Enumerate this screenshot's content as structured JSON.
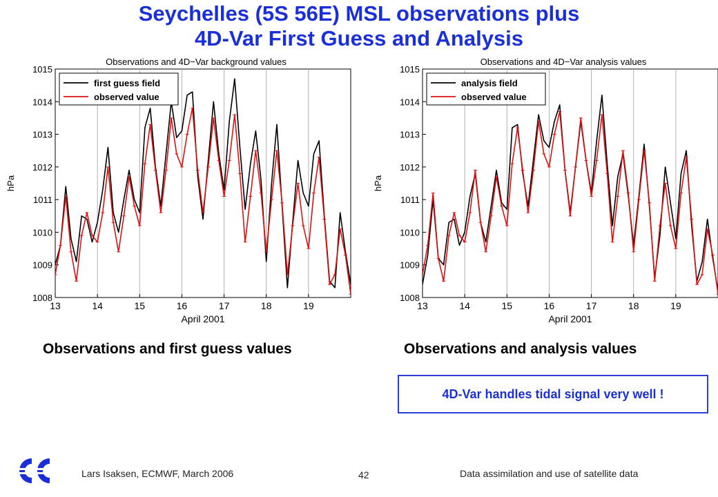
{
  "title": {
    "line1": "Seychelles (5S 56E) MSL observations plus",
    "line2": "4D-Var First Guess and Analysis"
  },
  "captions": {
    "left": "Observations and first guess values",
    "right": "Observations and analysis values"
  },
  "callout": "4D-Var handles tidal signal very well !",
  "footer": {
    "author": "Lars Isaksen, ECMWF, March 2006",
    "page": "42",
    "course": "Data assimilation and use of satellite data"
  },
  "colors": {
    "title": "#1a2fd6",
    "model_line": "#000000",
    "observed_line": "#e01010",
    "callout_border": "#2a3fd8"
  },
  "logo_icon": "ecmwf-logo-icon",
  "chart_data": [
    {
      "type": "line",
      "title": "Observations and 4D−Var background values",
      "xlabel": "April 2001",
      "ylabel": "hPa",
      "xlim": [
        13,
        20
      ],
      "ylim": [
        1008,
        1015
      ],
      "xticks": [
        13,
        14,
        15,
        16,
        17,
        18,
        19
      ],
      "yticks": [
        1008,
        1009,
        1010,
        1011,
        1012,
        1013,
        1014,
        1015
      ],
      "grid": "vertical",
      "legend_position": "top-left",
      "x": [
        13.0,
        13.125,
        13.25,
        13.375,
        13.5,
        13.625,
        13.75,
        13.875,
        14.0,
        14.125,
        14.25,
        14.375,
        14.5,
        14.625,
        14.75,
        14.875,
        15.0,
        15.125,
        15.25,
        15.375,
        15.5,
        15.625,
        15.75,
        15.875,
        16.0,
        16.125,
        16.25,
        16.375,
        16.5,
        16.625,
        16.75,
        16.875,
        17.0,
        17.125,
        17.25,
        17.375,
        17.5,
        17.625,
        17.75,
        17.875,
        18.0,
        18.125,
        18.25,
        18.375,
        18.5,
        18.625,
        18.75,
        18.875,
        19.0,
        19.125,
        19.25,
        19.375,
        19.5,
        19.625,
        19.75,
        19.875,
        20.0
      ],
      "series": [
        {
          "name": "first guess field",
          "color": "#000000",
          "values": [
            1009.0,
            1009.6,
            1011.4,
            1009.8,
            1009.1,
            1010.5,
            1010.4,
            1009.7,
            1010.3,
            1011.3,
            1012.6,
            1010.6,
            1010.0,
            1011.0,
            1011.9,
            1011.0,
            1010.6,
            1013.2,
            1013.8,
            1012.0,
            1010.8,
            1012.4,
            1014.0,
            1012.9,
            1013.1,
            1014.2,
            1014.3,
            1011.7,
            1010.4,
            1012.2,
            1014.0,
            1012.4,
            1011.3,
            1013.4,
            1014.7,
            1012.6,
            1010.7,
            1012.1,
            1013.1,
            1011.6,
            1009.1,
            1011.5,
            1013.3,
            1010.8,
            1008.3,
            1010.3,
            1012.2,
            1011.2,
            1010.8,
            1012.4,
            1012.8,
            1010.5,
            1008.5,
            1008.3,
            1010.6,
            1009.4,
            1008.4
          ]
        },
        {
          "name": "observed value",
          "color": "#e01010",
          "values": [
            1008.7,
            1009.6,
            1011.1,
            1009.4,
            1008.5,
            1009.9,
            1010.6,
            1009.9,
            1009.7,
            1010.6,
            1012.0,
            1010.3,
            1009.4,
            1010.5,
            1011.7,
            1010.8,
            1010.2,
            1012.1,
            1013.3,
            1011.9,
            1010.6,
            1011.9,
            1013.5,
            1012.4,
            1012.0,
            1013.0,
            1013.8,
            1011.9,
            1010.6,
            1012.0,
            1013.5,
            1012.2,
            1011.1,
            1012.2,
            1013.6,
            1011.8,
            1009.7,
            1011.1,
            1012.5,
            1011.2,
            1009.4,
            1011.0,
            1012.5,
            1010.9,
            1008.7,
            1010.2,
            1011.5,
            1010.2,
            1009.5,
            1011.2,
            1012.3,
            1010.4,
            1008.4,
            1008.7,
            1010.1,
            1009.3,
            1008.1
          ]
        }
      ]
    },
    {
      "type": "line",
      "title": "Observations and 4D−Var analysis values",
      "xlabel": "April 2001",
      "ylabel": "hPa",
      "xlim": [
        13,
        20
      ],
      "ylim": [
        1008,
        1015
      ],
      "xticks": [
        13,
        14,
        15,
        16,
        17,
        18,
        19
      ],
      "yticks": [
        1008,
        1009,
        1010,
        1011,
        1012,
        1013,
        1014,
        1015
      ],
      "grid": "vertical",
      "legend_position": "top-left",
      "x": [
        13.0,
        13.125,
        13.25,
        13.375,
        13.5,
        13.625,
        13.75,
        13.875,
        14.0,
        14.125,
        14.25,
        14.375,
        14.5,
        14.625,
        14.75,
        14.875,
        15.0,
        15.125,
        15.25,
        15.375,
        15.5,
        15.625,
        15.75,
        15.875,
        16.0,
        16.125,
        16.25,
        16.375,
        16.5,
        16.625,
        16.75,
        16.875,
        17.0,
        17.125,
        17.25,
        17.375,
        17.5,
        17.625,
        17.75,
        17.875,
        18.0,
        18.125,
        18.25,
        18.375,
        18.5,
        18.625,
        18.75,
        18.875,
        19.0,
        19.125,
        19.25,
        19.375,
        19.5,
        19.625,
        19.75,
        19.875,
        20.0
      ],
      "series": [
        {
          "name": "analysis field",
          "color": "#000000",
          "values": [
            1008.4,
            1009.3,
            1011.0,
            1009.2,
            1009.0,
            1010.3,
            1010.4,
            1009.6,
            1010.0,
            1011.1,
            1011.8,
            1010.3,
            1009.7,
            1010.8,
            1011.9,
            1010.9,
            1010.7,
            1013.2,
            1013.3,
            1011.8,
            1010.8,
            1012.2,
            1013.6,
            1012.8,
            1012.6,
            1013.4,
            1013.9,
            1011.9,
            1010.6,
            1012.0,
            1013.4,
            1012.2,
            1011.2,
            1012.8,
            1014.2,
            1012.1,
            1010.2,
            1011.7,
            1012.4,
            1011.1,
            1009.6,
            1011.1,
            1012.7,
            1010.8,
            1008.6,
            1009.9,
            1012.0,
            1010.9,
            1009.8,
            1011.8,
            1012.5,
            1010.2,
            1008.5,
            1009.1,
            1010.4,
            1009.2,
            1008.2
          ]
        },
        {
          "name": "observed value",
          "color": "#e01010",
          "values": [
            1008.7,
            1009.6,
            1011.2,
            1009.2,
            1008.5,
            1009.9,
            1010.6,
            1009.9,
            1009.7,
            1010.6,
            1011.9,
            1010.3,
            1009.4,
            1010.5,
            1011.7,
            1010.8,
            1010.2,
            1012.1,
            1013.2,
            1011.9,
            1010.6,
            1011.9,
            1013.4,
            1012.4,
            1012.0,
            1013.0,
            1013.7,
            1011.9,
            1010.5,
            1012.0,
            1013.5,
            1012.2,
            1011.1,
            1012.2,
            1013.6,
            1011.8,
            1009.7,
            1011.1,
            1012.5,
            1011.2,
            1009.4,
            1011.0,
            1012.5,
            1010.9,
            1008.5,
            1010.2,
            1011.5,
            1010.2,
            1009.5,
            1011.2,
            1012.3,
            1010.4,
            1008.4,
            1008.7,
            1010.1,
            1009.3,
            1008.1
          ]
        }
      ]
    }
  ]
}
